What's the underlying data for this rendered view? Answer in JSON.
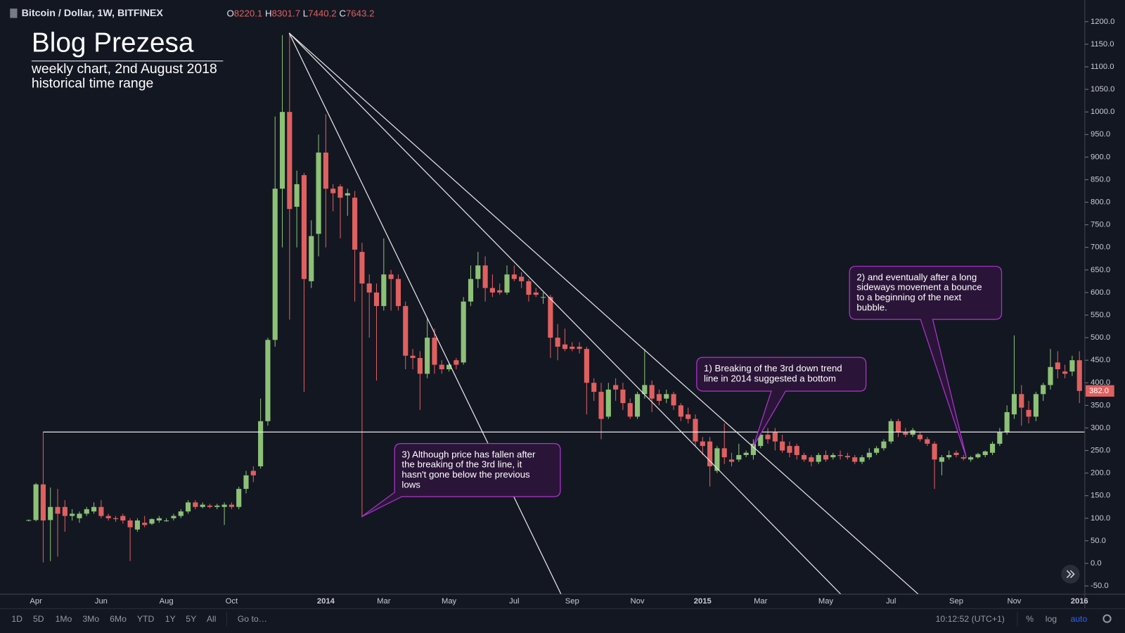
{
  "chart_data": {
    "type": "candlestick",
    "title": "Bitcoin / Dollar, 1W, BITFINEX",
    "ohlc_legend": [
      {
        "label": "O",
        "value": 8220.1
      },
      {
        "label": "H",
        "value": 8301.7
      },
      {
        "label": "L",
        "value": 7440.2
      },
      {
        "label": "C",
        "value": 7643.2
      }
    ],
    "categories": [
      null,
      "Apr",
      null,
      null,
      null,
      null,
      null,
      null,
      null,
      null,
      "Jun",
      null,
      null,
      null,
      null,
      null,
      null,
      null,
      null,
      "Aug",
      null,
      null,
      null,
      null,
      null,
      null,
      null,
      null,
      "Oct",
      null,
      null,
      null,
      null,
      null,
      null,
      null,
      null,
      null,
      null,
      null,
      null,
      "2014",
      null,
      null,
      null,
      null,
      null,
      null,
      null,
      "Mar",
      null,
      null,
      null,
      null,
      null,
      null,
      null,
      null,
      "May",
      null,
      null,
      null,
      null,
      null,
      null,
      null,
      null,
      "Jul",
      null,
      null,
      null,
      null,
      null,
      null,
      null,
      "Sep",
      null,
      null,
      null,
      null,
      null,
      null,
      null,
      null,
      "Nov",
      null,
      null,
      null,
      null,
      null,
      null,
      null,
      null,
      "2015",
      null,
      null,
      null,
      null,
      null,
      null,
      null,
      "Mar",
      null,
      null,
      null,
      null,
      null,
      null,
      null,
      null,
      "May",
      null,
      null,
      null,
      null,
      null,
      null,
      null,
      null,
      "Jul",
      null,
      null,
      null,
      null,
      null,
      null,
      null,
      null,
      "Sep",
      null,
      null,
      null,
      null,
      null,
      null,
      null,
      "Nov",
      null,
      null,
      null,
      null,
      null,
      null,
      null,
      null,
      "2016"
    ],
    "open": [
      95,
      96,
      175,
      96,
      125,
      125,
      105,
      100,
      110,
      115,
      125,
      105,
      100,
      105,
      95,
      75,
      90,
      88,
      95,
      95,
      100,
      105,
      115,
      135,
      125,
      128,
      125,
      125,
      130,
      125,
      165,
      205,
      215,
      315,
      495,
      830,
      1000,
      790,
      860,
      625,
      730,
      910,
      830,
      835,
      815,
      810,
      690,
      620,
      600,
      570,
      640,
      630,
      570,
      460,
      455,
      420,
      500,
      440,
      430,
      450,
      445,
      580,
      630,
      660,
      610,
      605,
      600,
      640,
      635,
      625,
      600,
      590,
      590,
      500,
      485,
      480,
      480,
      475,
      400,
      380,
      325,
      395,
      385,
      355,
      325,
      375,
      395,
      375,
      365,
      375,
      350,
      330,
      320,
      270,
      270,
      205,
      255,
      230,
      230,
      240,
      240,
      260,
      285,
      290,
      270,
      260,
      260,
      240,
      235,
      225,
      240,
      235,
      240,
      238,
      235,
      225,
      235,
      245,
      255,
      270,
      315,
      290,
      285,
      285,
      275,
      265,
      225,
      235,
      245,
      235,
      230,
      235,
      240,
      245,
      265,
      290,
      330,
      375,
      340,
      325,
      375,
      395,
      445,
      425,
      425,
      450
    ],
    "high": [
      97,
      178,
      290,
      168,
      165,
      140,
      120,
      115,
      125,
      135,
      140,
      110,
      105,
      110,
      100,
      100,
      105,
      100,
      105,
      100,
      110,
      120,
      140,
      140,
      135,
      132,
      132,
      135,
      135,
      170,
      205,
      215,
      365,
      500,
      990,
      1170,
      1175,
      870,
      865,
      760,
      950,
      995,
      840,
      840,
      830,
      825,
      710,
      640,
      620,
      720,
      650,
      640,
      580,
      475,
      470,
      545,
      520,
      450,
      445,
      455,
      590,
      660,
      690,
      680,
      640,
      620,
      660,
      660,
      645,
      630,
      610,
      600,
      595,
      530,
      520,
      490,
      490,
      480,
      410,
      400,
      400,
      410,
      400,
      365,
      380,
      475,
      405,
      385,
      385,
      380,
      355,
      345,
      330,
      280,
      280,
      260,
      310,
      245,
      265,
      250,
      275,
      295,
      300,
      300,
      285,
      270,
      265,
      245,
      240,
      245,
      250,
      245,
      250,
      245,
      240,
      240,
      255,
      260,
      275,
      320,
      320,
      300,
      300,
      290,
      280,
      270,
      240,
      250,
      250,
      240,
      238,
      245,
      250,
      270,
      300,
      350,
      505,
      395,
      360,
      380,
      400,
      475,
      470,
      440,
      460,
      470
    ],
    "low": [
      93,
      93,
      2,
      5,
      15,
      70,
      95,
      90,
      105,
      110,
      100,
      95,
      92,
      88,
      5,
      70,
      80,
      85,
      90,
      92,
      95,
      100,
      110,
      120,
      122,
      122,
      120,
      85,
      120,
      120,
      155,
      180,
      210,
      305,
      480,
      700,
      540,
      700,
      380,
      610,
      680,
      700,
      780,
      720,
      770,
      580,
      102,
      500,
      405,
      560,
      560,
      560,
      430,
      430,
      340,
      410,
      420,
      420,
      425,
      430,
      440,
      570,
      610,
      580,
      590,
      595,
      595,
      625,
      610,
      580,
      590,
      575,
      455,
      450,
      470,
      470,
      465,
      330,
      360,
      275,
      320,
      360,
      340,
      320,
      320,
      365,
      335,
      350,
      355,
      340,
      315,
      310,
      260,
      240,
      170,
      200,
      220,
      215,
      225,
      235,
      230,
      255,
      265,
      250,
      245,
      235,
      230,
      225,
      215,
      220,
      225,
      230,
      230,
      230,
      220,
      220,
      230,
      240,
      250,
      265,
      280,
      280,
      280,
      270,
      260,
      165,
      195,
      230,
      235,
      228,
      225,
      232,
      235,
      240,
      260,
      285,
      320,
      305,
      310,
      315,
      360,
      385,
      410,
      410,
      415,
      355
    ],
    "close": [
      96,
      175,
      95,
      125,
      110,
      105,
      110,
      110,
      120,
      125,
      105,
      100,
      98,
      95,
      80,
      95,
      85,
      98,
      100,
      95,
      105,
      115,
      135,
      125,
      130,
      125,
      128,
      130,
      125,
      165,
      195,
      195,
      315,
      495,
      830,
      1000,
      785,
      840,
      630,
      725,
      910,
      830,
      820,
      810,
      820,
      695,
      620,
      600,
      570,
      640,
      630,
      570,
      460,
      455,
      420,
      500,
      440,
      430,
      440,
      440,
      580,
      630,
      660,
      610,
      600,
      600,
      640,
      630,
      625,
      595,
      595,
      590,
      500,
      480,
      475,
      475,
      475,
      400,
      380,
      320,
      385,
      385,
      355,
      325,
      375,
      395,
      365,
      360,
      375,
      350,
      325,
      320,
      270,
      260,
      215,
      255,
      235,
      225,
      240,
      245,
      265,
      285,
      275,
      270,
      250,
      245,
      240,
      230,
      225,
      240,
      230,
      240,
      238,
      235,
      225,
      235,
      245,
      255,
      270,
      315,
      290,
      285,
      295,
      275,
      265,
      230,
      235,
      240,
      240,
      232,
      235,
      242,
      248,
      265,
      290,
      335,
      375,
      345,
      325,
      375,
      395,
      435,
      430,
      420,
      450,
      382
    ],
    "up_color": "#8cc176",
    "down_color": "#e0605f",
    "last_label": {
      "value": 382,
      "label": "382.0"
    },
    "ylim": [
      -68.4,
      1248
    ],
    "yticks": [
      {
        "value": -50,
        "label": "-50.0"
      },
      {
        "value": 0,
        "label": "0.0"
      },
      {
        "value": 50,
        "label": "50.0"
      },
      {
        "value": 100,
        "label": "100.0"
      },
      {
        "value": 150,
        "label": "150.0"
      },
      {
        "value": 200,
        "label": "200.0"
      },
      {
        "value": 250,
        "label": "250.0"
      },
      {
        "value": 300,
        "label": "300.0"
      },
      {
        "value": 350,
        "label": "350.0"
      },
      {
        "value": 400,
        "label": "400.0"
      },
      {
        "value": 450,
        "label": "450.0"
      },
      {
        "value": 500,
        "label": "500.0"
      },
      {
        "value": 550,
        "label": "550.0"
      },
      {
        "value": 600,
        "label": "600.0"
      },
      {
        "value": 650,
        "label": "650.0"
      },
      {
        "value": 700,
        "label": "700.0"
      },
      {
        "value": 750,
        "label": "750.0"
      },
      {
        "value": 800,
        "label": "800.0"
      },
      {
        "value": 850,
        "label": "850.0"
      },
      {
        "value": 900,
        "label": "900.0"
      },
      {
        "value": 950,
        "label": "950.0"
      },
      {
        "value": 1000,
        "label": "1000.0"
      },
      {
        "value": 1050,
        "label": "1050.0"
      },
      {
        "value": 1100,
        "label": "1100.0"
      },
      {
        "value": 1150,
        "label": "1150.0"
      },
      {
        "value": 1200,
        "label": "1200.0"
      }
    ],
    "grid": false
  },
  "annotations": {
    "title": "Blog Prezesa",
    "subtitle": [
      "weekly chart, 2nd August 2018",
      "historical time range"
    ],
    "callouts": [
      [
        "1) Breaking of the 3rd down trend",
        "line in 2014 suggested a bottom"
      ],
      [
        "2) and eventually after a long",
        "sideways movement a bounce",
        "to a beginning of the next",
        "bubble."
      ],
      [
        "3) Although price has fallen after",
        "the breaking of the 3rd line, it",
        "hasn't gone below the previous",
        "lows"
      ]
    ]
  },
  "toolbar": {
    "ranges": [
      "1D",
      "5D",
      "1Mo",
      "3Mo",
      "6Mo",
      "YTD",
      "1Y",
      "5Y",
      "All"
    ],
    "goto": "Go to…",
    "time": "10:12:52 (UTC+1)",
    "options": [
      "%",
      "log",
      "auto"
    ]
  }
}
